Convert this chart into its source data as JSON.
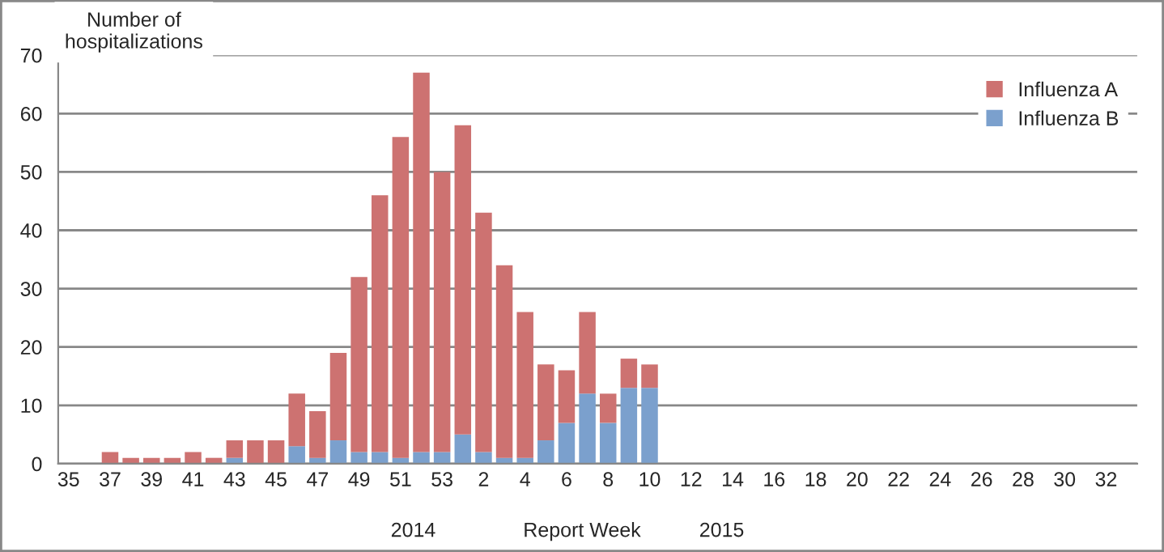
{
  "chart_data": {
    "type": "bar",
    "stacked": true,
    "ylabel": "Number of hospitalizations",
    "xlabel": "Report Week",
    "annotations": [
      "2014",
      "2015"
    ],
    "categories": [
      "35",
      null,
      "37",
      null,
      "39",
      null,
      "41",
      null,
      "43",
      null,
      "45",
      null,
      "47",
      null,
      "49",
      null,
      "51",
      null,
      "53",
      null,
      "2",
      null,
      "4",
      null,
      "6",
      null,
      "8",
      null,
      "10",
      null,
      "12",
      null,
      "14",
      null,
      "16",
      null,
      "18",
      null,
      "20",
      null,
      "22",
      null,
      "24",
      null,
      "26",
      null,
      "28",
      null,
      "30",
      null,
      "32",
      null
    ],
    "series": [
      {
        "name": "Influenza B",
        "color": "#7ba0cd",
        "values": [
          0,
          0,
          0,
          0,
          0,
          0,
          0,
          0,
          1,
          0,
          0,
          3,
          1,
          4,
          2,
          2,
          1,
          2,
          2,
          5,
          2,
          1,
          1,
          4,
          7,
          12,
          7,
          13,
          13,
          null,
          null,
          null,
          null,
          null,
          null,
          null,
          null,
          null,
          null,
          null,
          null,
          null,
          null,
          null,
          null,
          null,
          null,
          null,
          null,
          null,
          null,
          null
        ]
      },
      {
        "name": "Influenza A",
        "color": "#cd7271",
        "values": [
          0,
          0,
          2,
          1,
          1,
          1,
          2,
          1,
          3,
          4,
          4,
          9,
          8,
          15,
          30,
          44,
          55,
          65,
          48,
          53,
          41,
          33,
          25,
          13,
          9,
          14,
          5,
          5,
          4,
          null,
          null,
          null,
          null,
          null,
          null,
          null,
          null,
          null,
          null,
          null,
          null,
          null,
          null,
          null,
          null,
          null,
          null,
          null,
          null,
          null,
          null,
          null
        ]
      }
    ],
    "ylim": [
      0,
      70
    ],
    "yticks": [
      0,
      10,
      20,
      30,
      40,
      50,
      60,
      70
    ],
    "grid": "y",
    "legend": "top right"
  }
}
